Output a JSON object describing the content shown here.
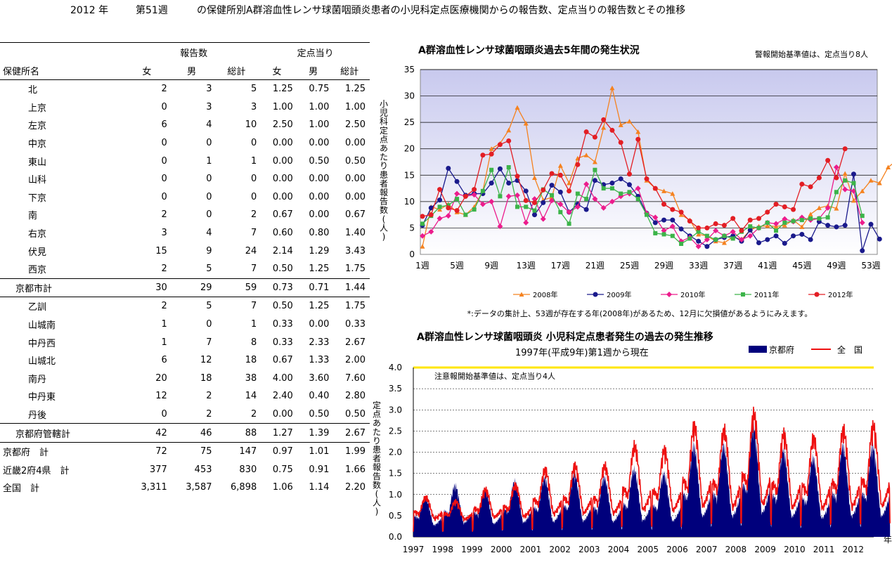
{
  "header": {
    "year": "2012 年",
    "week": "第51週",
    "title": "の保健所別A群溶血性レンサ球菌咽頭炎患者の小児科定点医療機関からの報告数、定点当りの報告数とその推移"
  },
  "table": {
    "group_reports": "報告数",
    "group_per": "定点当り",
    "col_name": "保健所名",
    "cols": [
      "女",
      "男",
      "総計",
      "女",
      "男",
      "総計"
    ],
    "rows": [
      {
        "name": "北",
        "v": [
          "2",
          "3",
          "5",
          "1.25",
          "0.75",
          "1.25"
        ]
      },
      {
        "name": "上京",
        "v": [
          "0",
          "3",
          "3",
          "1.00",
          "1.00",
          "1.00"
        ]
      },
      {
        "name": "左京",
        "v": [
          "6",
          "4",
          "10",
          "2.50",
          "1.00",
          "2.50"
        ]
      },
      {
        "name": "中京",
        "v": [
          "0",
          "0",
          "0",
          "0.00",
          "0.00",
          "0.00"
        ]
      },
      {
        "name": "東山",
        "v": [
          "0",
          "1",
          "1",
          "0.00",
          "0.50",
          "0.50"
        ]
      },
      {
        "name": "山科",
        "v": [
          "0",
          "0",
          "0",
          "0.00",
          "0.00",
          "0.00"
        ]
      },
      {
        "name": "下京",
        "v": [
          "0",
          "0",
          "0",
          "0.00",
          "0.00",
          "0.00"
        ]
      },
      {
        "name": "南",
        "v": [
          "2",
          "0",
          "2",
          "0.67",
          "0.00",
          "0.67"
        ]
      },
      {
        "name": "右京",
        "v": [
          "3",
          "4",
          "7",
          "0.60",
          "0.80",
          "1.40"
        ]
      },
      {
        "name": "伏見",
        "v": [
          "15",
          "9",
          "24",
          "2.14",
          "1.29",
          "3.43"
        ]
      },
      {
        "name": "西京",
        "v": [
          "2",
          "5",
          "7",
          "0.50",
          "1.25",
          "1.75"
        ]
      },
      {
        "name": "京都市計",
        "v": [
          "30",
          "29",
          "59",
          "0.73",
          "0.71",
          "1.44"
        ]
      },
      {
        "name": "乙訓",
        "v": [
          "2",
          "5",
          "7",
          "0.50",
          "1.25",
          "1.75"
        ]
      },
      {
        "name": "山城南",
        "v": [
          "1",
          "0",
          "1",
          "0.33",
          "0.00",
          "0.33"
        ]
      },
      {
        "name": "中丹西",
        "v": [
          "1",
          "7",
          "8",
          "0.33",
          "2.33",
          "2.67"
        ]
      },
      {
        "name": "山城北",
        "v": [
          "6",
          "12",
          "18",
          "0.67",
          "1.33",
          "2.00"
        ]
      },
      {
        "name": "南丹",
        "v": [
          "20",
          "18",
          "38",
          "4.00",
          "3.60",
          "7.60"
        ]
      },
      {
        "name": "中丹東",
        "v": [
          "12",
          "2",
          "14",
          "2.40",
          "0.40",
          "2.80"
        ]
      },
      {
        "name": "丹後",
        "v": [
          "0",
          "2",
          "2",
          "0.00",
          "0.50",
          "0.50"
        ]
      },
      {
        "name": "京都府管轄計",
        "v": [
          "42",
          "46",
          "88",
          "1.27",
          "1.39",
          "2.67"
        ]
      },
      {
        "name": "京都府　計",
        "v": [
          "72",
          "75",
          "147",
          "0.97",
          "1.01",
          "1.99"
        ]
      },
      {
        "name": "近畿2府4県　計",
        "v": [
          "377",
          "453",
          "830",
          "0.75",
          "0.91",
          "1.66"
        ]
      },
      {
        "name": "全国　計",
        "v": [
          "3,311",
          "3,587",
          "6,898",
          "1.06",
          "1.14",
          "2.20"
        ]
      }
    ]
  },
  "chart_data": [
    {
      "type": "line",
      "title": "A群溶血性レンサ球菌咽頭炎過去5年間の発生状況",
      "note": "警報開始基準値は、定点当り8人",
      "ylabel": "小児科定点あたり患者報告数(人)",
      "ylim": [
        0,
        35
      ],
      "yticks": [
        "0",
        "5",
        "10",
        "15",
        "20",
        "25",
        "30",
        "35"
      ],
      "x_ticks": [
        "1週",
        "5週",
        "9週",
        "13週",
        "17週",
        "21週",
        "25週",
        "29週",
        "33週",
        "37週",
        "41週",
        "45週",
        "49週",
        "53週"
      ],
      "footnote": "*:データの集計上、53週が存在する年(2008年)があるため、12月に欠損値があるようにみえます。",
      "grid": true,
      "legend_position": "bottom",
      "series": [
        {
          "name": "2008年",
          "color": "#f5821f",
          "marker": "triangle",
          "values": [
            1.5,
            9,
            8.5,
            9.5,
            8,
            7.5,
            9,
            12,
            20,
            21,
            23.5,
            27.8,
            24.8,
            14.5,
            10.3,
            10.8,
            16.8,
            13.5,
            18.2,
            18.8,
            17.5,
            24,
            31.5,
            24.5,
            25.2,
            23.2,
            14,
            12.5,
            12,
            11.5,
            7.5,
            6.5,
            3.8,
            3.5,
            2.5,
            2.2,
            3.3,
            2.8,
            4.6,
            5.3,
            5.4,
            5.3,
            5.5,
            6.5,
            5.2,
            7.6,
            8.8,
            9.2,
            8.7,
            15.3,
            10.2,
            12,
            14,
            13.5,
            16.5,
            17.8,
            15.5
          ]
        },
        {
          "name": "2009年",
          "color": "#1a1a8c",
          "marker": "circle",
          "values": [
            5.5,
            8.8,
            10.3,
            16.3,
            13.8,
            11.2,
            11.5,
            11.5,
            13.5,
            16.2,
            13.5,
            14,
            12,
            7.5,
            9.8,
            13.1,
            11.8,
            8,
            9.5,
            8.5,
            14,
            13.2,
            13.5,
            14.3,
            13.2,
            11,
            7.8,
            6,
            6.5,
            6.5,
            4.8,
            3.5,
            2.5,
            1.5,
            2.8,
            3.2,
            3.5,
            2.5,
            4.6,
            2.2,
            2.8,
            3.5,
            2.1,
            3.5,
            3.8,
            2.8,
            6.2,
            5.5,
            5.2,
            5.5,
            15.2,
            0.7,
            5.7,
            2.9
          ]
        },
        {
          "name": "2010年",
          "color": "#ec1c8c",
          "marker": "diamond",
          "values": [
            3.5,
            4.3,
            6.8,
            7.3,
            11.5,
            11,
            11.3,
            9.5,
            10,
            5.3,
            11,
            11.2,
            6,
            10.5,
            6.7,
            10.2,
            9.5,
            8,
            9,
            13.3,
            10.5,
            8.8,
            10,
            11,
            11.5,
            12.5,
            7.8,
            7,
            4.5,
            5.3,
            2.5,
            3.2,
            1.5,
            2.8,
            4.5,
            3.5,
            4.3,
            2.8,
            3.5,
            5,
            6,
            5.8,
            6.7,
            6.2,
            7,
            6.5,
            6.8,
            8.8,
            16.5,
            12.3,
            12,
            6
          ]
        },
        {
          "name": "2011年",
          "color": "#3cb449",
          "marker": "square",
          "values": [
            5.8,
            7.3,
            9,
            9.3,
            10.5,
            7.5,
            8.5,
            12,
            16,
            11,
            16.5,
            9,
            9,
            8.3,
            12.3,
            11.2,
            8,
            5.8,
            11.5,
            10.5,
            16,
            12.5,
            12.5,
            11.5,
            11.8,
            10.5,
            7.5,
            4,
            3.8,
            3.5,
            2,
            3,
            4.3,
            3.5,
            2.8,
            3.5,
            3,
            4.3,
            5.3,
            5,
            6,
            4.5,
            6,
            6.3,
            6.5,
            6.8,
            6.8,
            7,
            11.8,
            14,
            13.5,
            7.3
          ]
        },
        {
          "name": "2012年",
          "color": "#e31e24",
          "marker": "circle",
          "values": [
            7.2,
            7.5,
            12.3,
            8.8,
            8.3,
            11,
            12.3,
            18.8,
            19,
            20.8,
            21.5,
            14.8,
            10.2,
            9.8,
            12.2,
            15.3,
            15,
            12,
            17,
            23.2,
            22.2,
            25.5,
            23.5,
            21.2,
            15.2,
            21.8,
            14.3,
            12.5,
            9.5,
            8.5,
            8,
            6.3,
            5,
            5,
            5.8,
            5.5,
            6.8,
            4.5,
            6.5,
            6.8,
            8,
            9.5,
            9,
            8.5,
            13.3,
            12.8,
            14.5,
            17.8,
            14.5,
            20
          ]
        }
      ]
    },
    {
      "type": "area",
      "title": "A群溶血性レンサ球菌咽頭炎 小児科定点患者発生の過去の発生推移",
      "subtitle": "1997年(平成9年)第1週から現在",
      "note": "注意報開始基準値は、定点当り4人",
      "ylabel": "定点あたり患者報告数(人)",
      "xlabel": "年",
      "ylim": [
        0,
        4.0
      ],
      "yticks": [
        "0.0",
        "0.5",
        "1.0",
        "1.5",
        "2.0",
        "2.5",
        "3.0",
        "3.5",
        "4.0"
      ],
      "x_ticks": [
        "1997",
        "1998",
        "1999",
        "2000",
        "2001",
        "2002",
        "2003",
        "2004",
        "2005",
        "2006",
        "2007",
        "2008",
        "2009",
        "2010",
        "2011",
        "2012"
      ],
      "threshold": 4.0,
      "threshold_color": "#ffe600",
      "legend_position": "top-right",
      "series": [
        {
          "name": "京都府",
          "color": "#00007c",
          "kind": "area",
          "yearly_peak": [
            1.0,
            1.3,
            1.2,
            1.4,
            1.5,
            1.6,
            1.5,
            1.7,
            1.6,
            2.3,
            2.3,
            2.8,
            2.2,
            2.0,
            2.3,
            2.3
          ]
        },
        {
          "name": "全　国",
          "color": "#ee1111",
          "kind": "line",
          "yearly_peak": [
            1.0,
            0.9,
            1.2,
            1.3,
            1.7,
            1.8,
            1.8,
            2.3,
            2.2,
            2.8,
            2.7,
            3.1,
            2.6,
            2.5,
            2.7,
            2.8
          ]
        }
      ]
    }
  ]
}
